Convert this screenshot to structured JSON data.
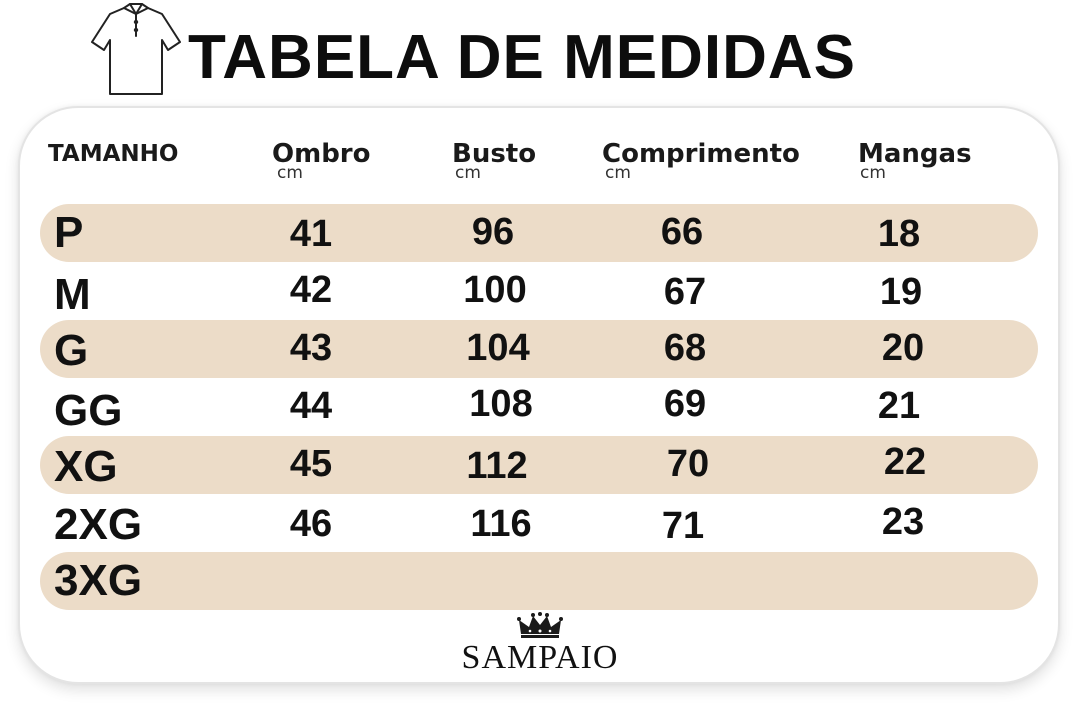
{
  "header": {
    "title": "TABELA DE MEDIDAS",
    "icon": "polo-shirt-icon"
  },
  "table": {
    "columns": [
      {
        "label": "TAMANHO",
        "unit": ""
      },
      {
        "label": "Ombro",
        "unit": "cm"
      },
      {
        "label": "Busto",
        "unit": "cm"
      },
      {
        "label": "Comprimento",
        "unit": "cm"
      },
      {
        "label": "Mangas",
        "unit": "cm"
      }
    ],
    "rows": [
      {
        "size": "P",
        "ombro": "41",
        "busto": "96",
        "comprimento": "66",
        "mangas": "18",
        "highlighted": true
      },
      {
        "size": "M",
        "ombro": "42",
        "busto": "100",
        "comprimento": "67",
        "mangas": "19",
        "highlighted": false
      },
      {
        "size": "G",
        "ombro": "43",
        "busto": "104",
        "comprimento": "68",
        "mangas": "20",
        "highlighted": true
      },
      {
        "size": "GG",
        "ombro": "44",
        "busto": "108",
        "comprimento": "69",
        "mangas": "21",
        "highlighted": false
      },
      {
        "size": "XG",
        "ombro": "45",
        "busto": "112",
        "comprimento": "70",
        "mangas": "22",
        "highlighted": true
      },
      {
        "size": "2XG",
        "ombro": "46",
        "busto": "116",
        "comprimento": "71",
        "mangas": "23",
        "highlighted": false
      },
      {
        "size": "3XG",
        "ombro": "",
        "busto": "",
        "comprimento": "",
        "mangas": "",
        "highlighted": true
      }
    ]
  },
  "brand": {
    "name": "SAMPAIO",
    "icon": "crown-icon"
  },
  "colors": {
    "band": "#ecdcc8",
    "text": "#111111"
  }
}
